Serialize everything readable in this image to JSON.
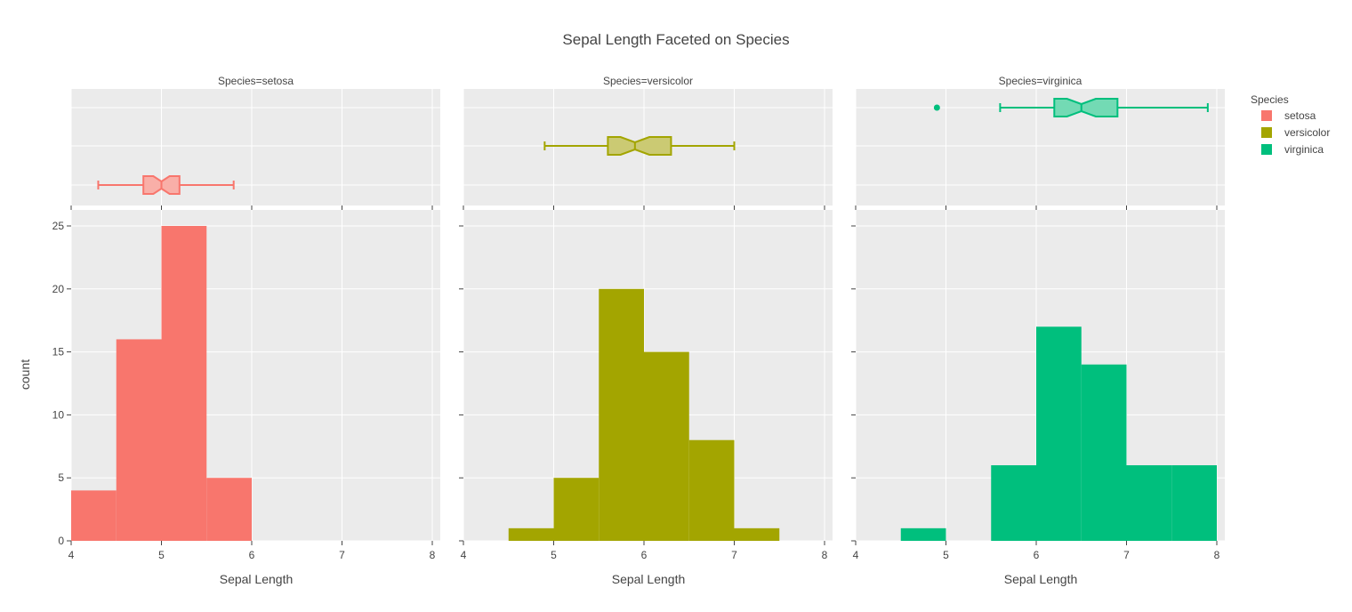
{
  "chart_data": {
    "type": "bar",
    "title": "Sepal Length Faceted on Species",
    "xlabel": "Sepal Length",
    "ylabel": "count",
    "xlim": [
      4,
      8
    ],
    "ylim": [
      0,
      25
    ],
    "x_ticks": [
      "4",
      "5",
      "6",
      "7",
      "8"
    ],
    "y_ticks": [
      "0",
      "5",
      "10",
      "15",
      "20",
      "25"
    ],
    "grid": true,
    "legend": {
      "title": "Species",
      "placement": "top-right"
    },
    "bin_width": 0.5,
    "panels": [
      {
        "facet_label": "Species=setosa",
        "name": "setosa",
        "color": "#F8766D",
        "fill_light": "#F9AFA8",
        "bins": [
          4,
          4.5,
          5,
          5.5
        ],
        "counts": [
          4,
          16,
          25,
          5
        ],
        "box": {
          "min": 4.3,
          "q1": 4.8,
          "median": 5.0,
          "q3": 5.2,
          "max": 5.8,
          "notch_low": 4.91,
          "notch_high": 5.09,
          "outliers": []
        }
      },
      {
        "facet_label": "Species=versicolor",
        "name": "versicolor",
        "color": "#A3A500",
        "fill_light": "#CBCA73",
        "bins": [
          4.5,
          5,
          5.5,
          6,
          6.5,
          7
        ],
        "counts": [
          1,
          5,
          20,
          15,
          8,
          1
        ],
        "box": {
          "min": 4.9,
          "q1": 5.6,
          "median": 5.9,
          "q3": 6.3,
          "max": 7.0,
          "notch_low": 5.74,
          "notch_high": 6.06,
          "outliers": []
        }
      },
      {
        "facet_label": "Species=virginica",
        "name": "virginica",
        "color": "#00BF7D",
        "fill_light": "#73DAB4",
        "bins": [
          4.5,
          5.5,
          6,
          6.5,
          7,
          7.5
        ],
        "counts": [
          1,
          6,
          17,
          14,
          6,
          6
        ],
        "box": {
          "min": 5.6,
          "q1": 6.2,
          "median": 6.5,
          "q3": 6.9,
          "max": 7.9,
          "notch_low": 6.34,
          "notch_high": 6.66,
          "outliers": [
            4.9
          ]
        }
      }
    ]
  }
}
